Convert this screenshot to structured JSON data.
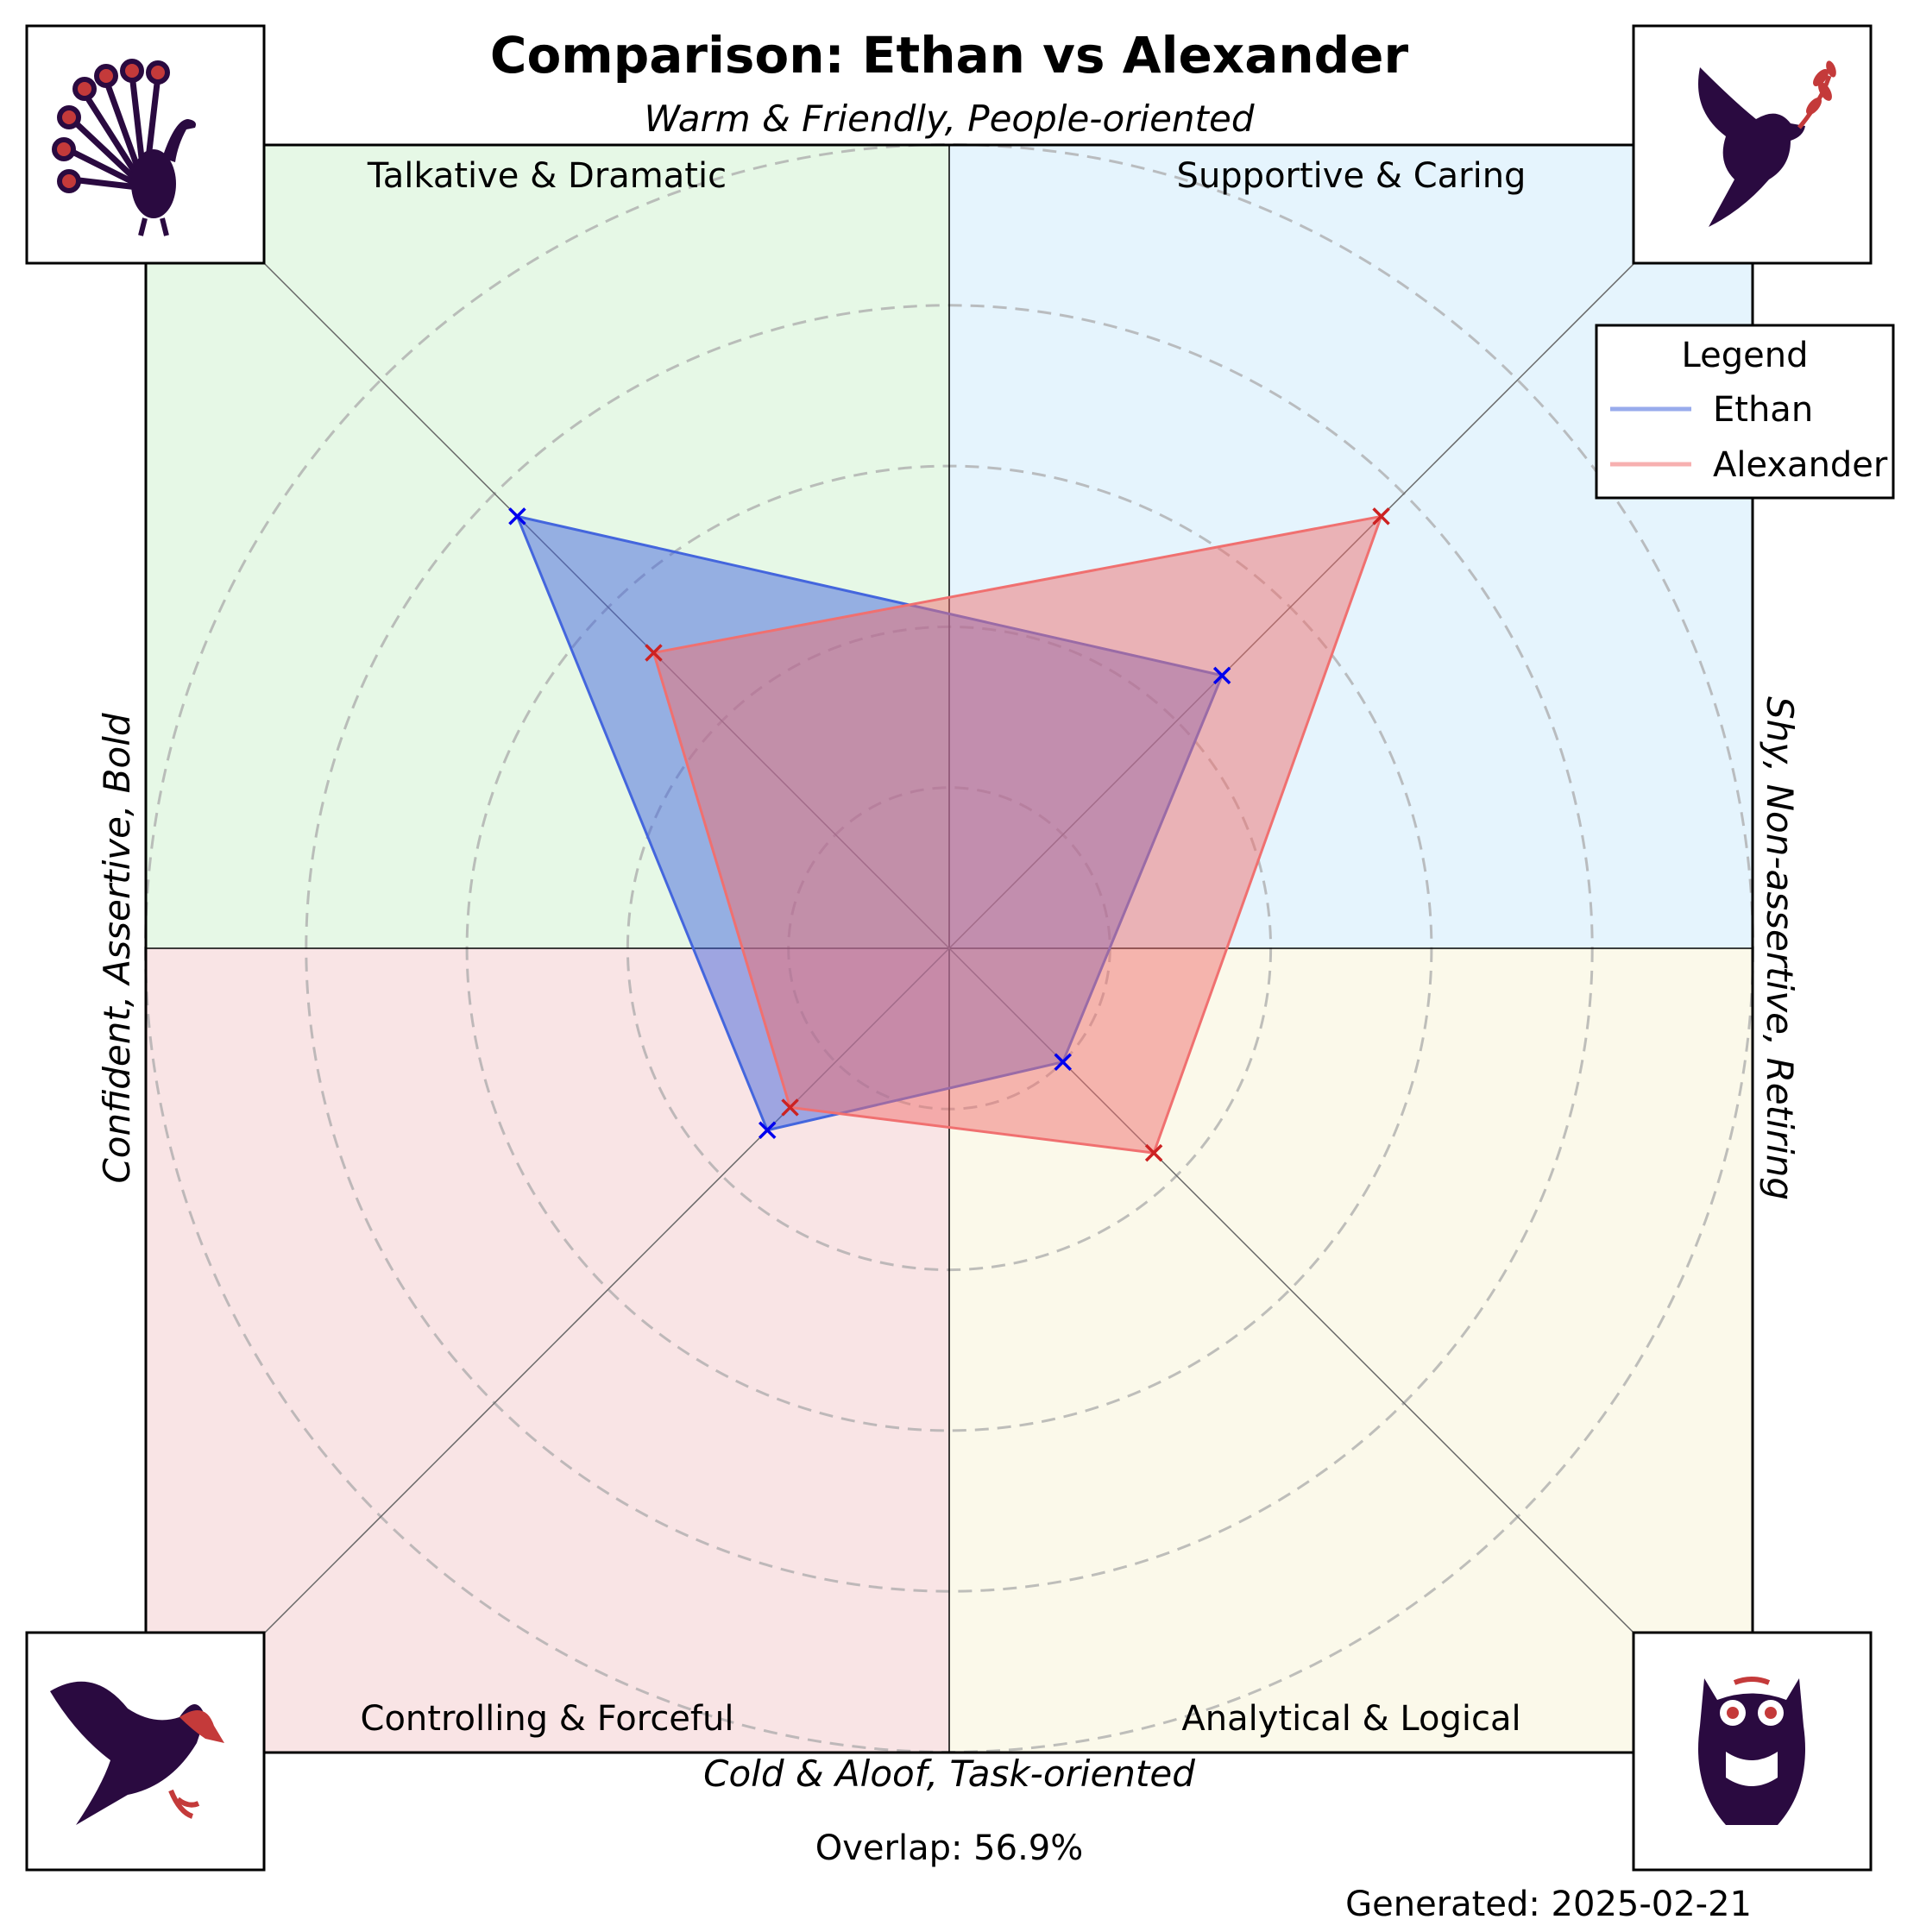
{
  "chart_data": {
    "type": "radar",
    "title": "Comparison: Ethan vs Alexander",
    "axis_labels": {
      "top": "Warm & Friendly, People-oriented",
      "bottom": "Cold & Aloof, Task-oriented",
      "left": "Confident, Assertive, Bold",
      "right": "Shy, Non-assertive, Retiring"
    },
    "quadrants": [
      {
        "name": "Talkative & Dramatic",
        "color": "#e6f8e6",
        "icon": "peacock-icon"
      },
      {
        "name": "Supportive & Caring",
        "color": "#e5f4fd",
        "icon": "dove-icon"
      },
      {
        "name": "Controlling & Forceful",
        "color": "#f9e4e5",
        "icon": "eagle-icon"
      },
      {
        "name": "Analytical & Logical",
        "color": "#fbf9ea",
        "icon": "owl-icon"
      }
    ],
    "axes": [
      "Talkative & Dramatic",
      "Supportive & Caring",
      "Analytical & Logical",
      "Controlling & Forceful"
    ],
    "rmax": 5,
    "rings": [
      1,
      2,
      3,
      4,
      5
    ],
    "series": [
      {
        "name": "Ethan",
        "values": [
          3.8,
          2.4,
          1.0,
          1.6
        ],
        "color": "#4466dd",
        "marker_color": "#0000ee"
      },
      {
        "name": "Alexander",
        "values": [
          2.6,
          3.8,
          1.8,
          1.4
        ],
        "color": "#f07070",
        "marker_color": "#cc2222"
      }
    ],
    "legend": {
      "title": "Legend",
      "position": "top-right"
    },
    "grid": true
  },
  "footer": {
    "overlap": "Overlap: 56.9%",
    "generated": "Generated: 2025-02-21"
  }
}
